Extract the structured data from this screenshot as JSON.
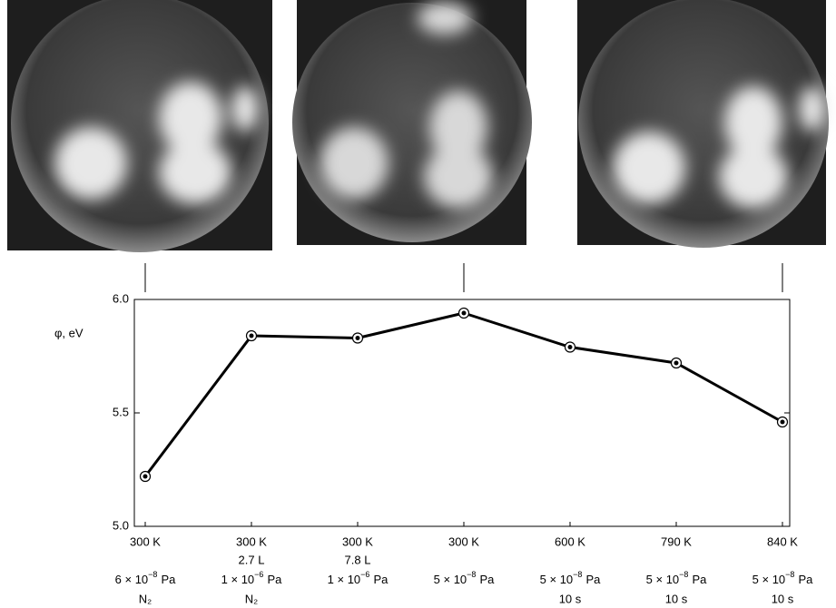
{
  "chart_data": {
    "type": "line",
    "y_label": "φ, eV",
    "categories": [
      "300 K",
      "300 K",
      "300 K",
      "300 K",
      "600 K",
      "790 K",
      "840 K"
    ],
    "dose": [
      null,
      "2.7 L",
      "7.8 L",
      null,
      null,
      null,
      null
    ],
    "pressure": [
      {
        "mantissa": "6 × 10",
        "exponent": "−8",
        "unit": "Pa"
      },
      {
        "mantissa": "1 × 10",
        "exponent": "−6",
        "unit": "Pa"
      },
      {
        "mantissa": "1 × 10",
        "exponent": "−6",
        "unit": "Pa"
      },
      {
        "mantissa": "5 × 10",
        "exponent": "−8",
        "unit": "Pa"
      },
      {
        "mantissa": "5 × 10",
        "exponent": "−8",
        "unit": "Pa"
      },
      {
        "mantissa": "5 × 10",
        "exponent": "−8",
        "unit": "Pa"
      },
      {
        "mantissa": "5 × 10",
        "exponent": "−8",
        "unit": "Pa"
      }
    ],
    "condition": [
      "N₂",
      "N₂",
      null,
      null,
      "10 s",
      "10 s",
      "10 s"
    ],
    "series": [
      {
        "color": "#000000",
        "values": [
          5.22,
          5.84,
          5.83,
          5.94,
          5.79,
          5.72,
          5.46
        ]
      }
    ],
    "ylim": [
      5.0,
      6.0
    ],
    "yticks": [
      {
        "value": 5.0,
        "label": "5.0"
      },
      {
        "value": 5.5,
        "label": "5.5"
      },
      {
        "value": 6.0,
        "label": "6.0"
      }
    ]
  }
}
